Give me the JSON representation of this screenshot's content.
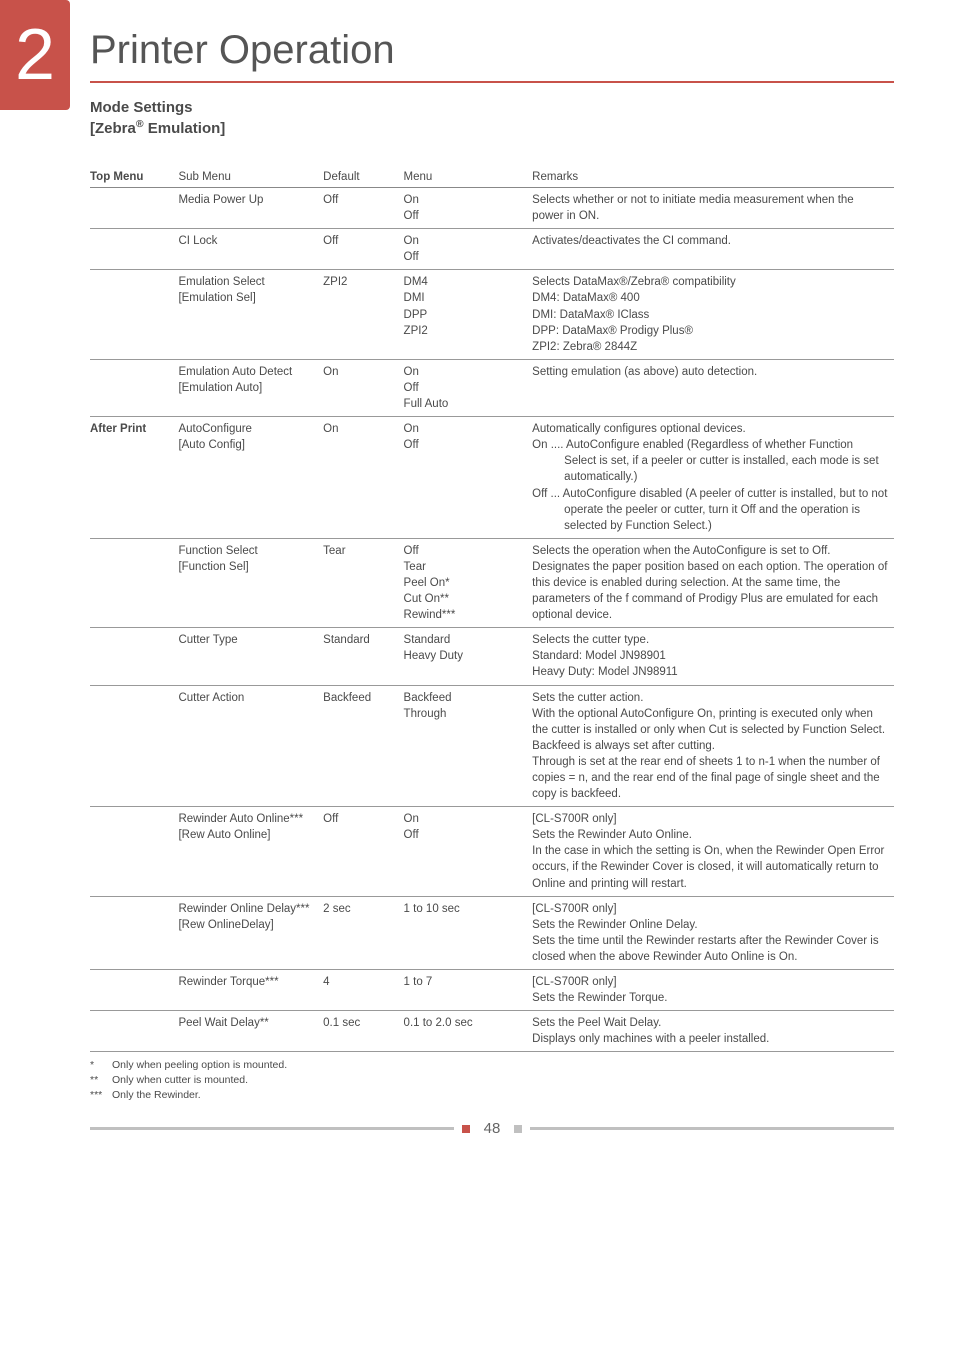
{
  "chapter": {
    "number": "2",
    "title": "Printer Operation"
  },
  "section": {
    "title": "Mode Settings",
    "subtitle_prefix": "[Zebra",
    "subtitle_suffix": " Emulation]"
  },
  "headers": {
    "top": "Top Menu",
    "sub": "Sub Menu",
    "def": "Default",
    "menu": "Menu",
    "rem": "Remarks"
  },
  "rows": [
    {
      "top": "",
      "sub": "Media Power Up",
      "def": "Off",
      "menu": "On\nOff",
      "rem": "Selects whether or not to initiate media measurement when the power in ON."
    },
    {
      "top": "",
      "sub": "CI Lock",
      "def": "Off",
      "menu": "On\nOff",
      "rem": "Activates/deactivates the CI command."
    },
    {
      "top": "",
      "sub": "Emulation Select\n[Emulation Sel]",
      "def": "ZPI2",
      "menu": "DM4\nDMI\nDPP\nZPI2",
      "rem": "Selects DataMax®/Zebra® compatibility\nDM4: DataMax® 400\nDMI: DataMax® IClass\nDPP: DataMax® Prodigy Plus®\nZPI2: Zebra® 2844Z"
    },
    {
      "top": "",
      "sub": "Emulation Auto Detect\n[Emulation Auto]",
      "def": "On",
      "menu": "On\nOff\nFull Auto",
      "rem": "Setting emulation (as above) auto detection."
    },
    {
      "top": "After Print",
      "sub": "AutoConfigure\n[Auto Config]",
      "def": "On",
      "menu": "On\nOff",
      "rem_lines": [
        "Automatically configures optional devices.",
        "On .... AutoConfigure enabled (Regardless of whether Function Select is set, if a peeler or cutter is installed, each mode is set automatically.)",
        "Off ... AutoConfigure disabled (A peeler of cutter is installed, but to not operate the peeler or cutter, turn it Off and the operation is selected by Function Select.)"
      ]
    },
    {
      "top": "",
      "sub": "Function Select\n[Function Sel]",
      "def": "Tear",
      "menu": "Off\nTear\nPeel On*\nCut On**\nRewind***",
      "rem": "Selects the operation when the AutoConfigure is set to Off. Designates the paper position based on each option. The operation of this device is enabled during selection. At the same time, the parameters of the f command of Prodigy Plus are emulated for each optional device."
    },
    {
      "top": "",
      "sub": "Cutter Type",
      "def": "Standard",
      "menu": "Standard\nHeavy Duty",
      "rem": "Selects the cutter type.\nStandard: Model JN98901\nHeavy Duty: Model JN98911"
    },
    {
      "top": "",
      "sub": "Cutter Action",
      "def": "Backfeed",
      "menu": "Backfeed\nThrough",
      "rem": "Sets the cutter action.\nWith the optional AutoConfigure On, printing is executed only when the cutter is installed or only when Cut is selected by Function Select.\nBackfeed is always set after cutting.\nThrough is set at the rear end of sheets 1 to n-1 when the number of copies = n, and the rear end of the final page of single sheet and the copy is backfeed."
    },
    {
      "top": "",
      "sub": "Rewinder Auto Online***\n[Rew Auto Online]",
      "def": "Off",
      "menu": "On\nOff",
      "rem": "[CL-S700R only]\nSets the Rewinder Auto Online.\nIn the case in which the setting is On, when the Rewinder Open Error occurs, if the Rewinder Cover is closed, it will automatically return to Online and printing will restart."
    },
    {
      "top": "",
      "sub": "Rewinder Online Delay***\n[Rew OnlineDelay]",
      "def": "2 sec",
      "menu": "1 to 10 sec",
      "rem": "[CL-S700R only]\nSets the Rewinder Online Delay.\nSets the time until the Rewinder restarts after the Rewinder Cover is closed when the above Rewinder Auto Online is On."
    },
    {
      "top": "",
      "sub": "Rewinder Torque***",
      "def": "4",
      "menu": "1 to 7",
      "rem": "[CL-S700R only]\nSets the Rewinder Torque."
    },
    {
      "top": "",
      "sub": "Peel Wait Delay**",
      "def": "0.1 sec",
      "menu": "0.1 to 2.0 sec",
      "rem": "Sets the Peel Wait Delay.\nDisplays only machines with a peeler installed."
    }
  ],
  "footnotes": [
    {
      "mark": "*",
      "text": "Only when peeling option is mounted."
    },
    {
      "mark": "**",
      "text": "Only when cutter is mounted."
    },
    {
      "mark": "***",
      "text": "Only the Rewinder."
    }
  ],
  "page_number": "48"
}
